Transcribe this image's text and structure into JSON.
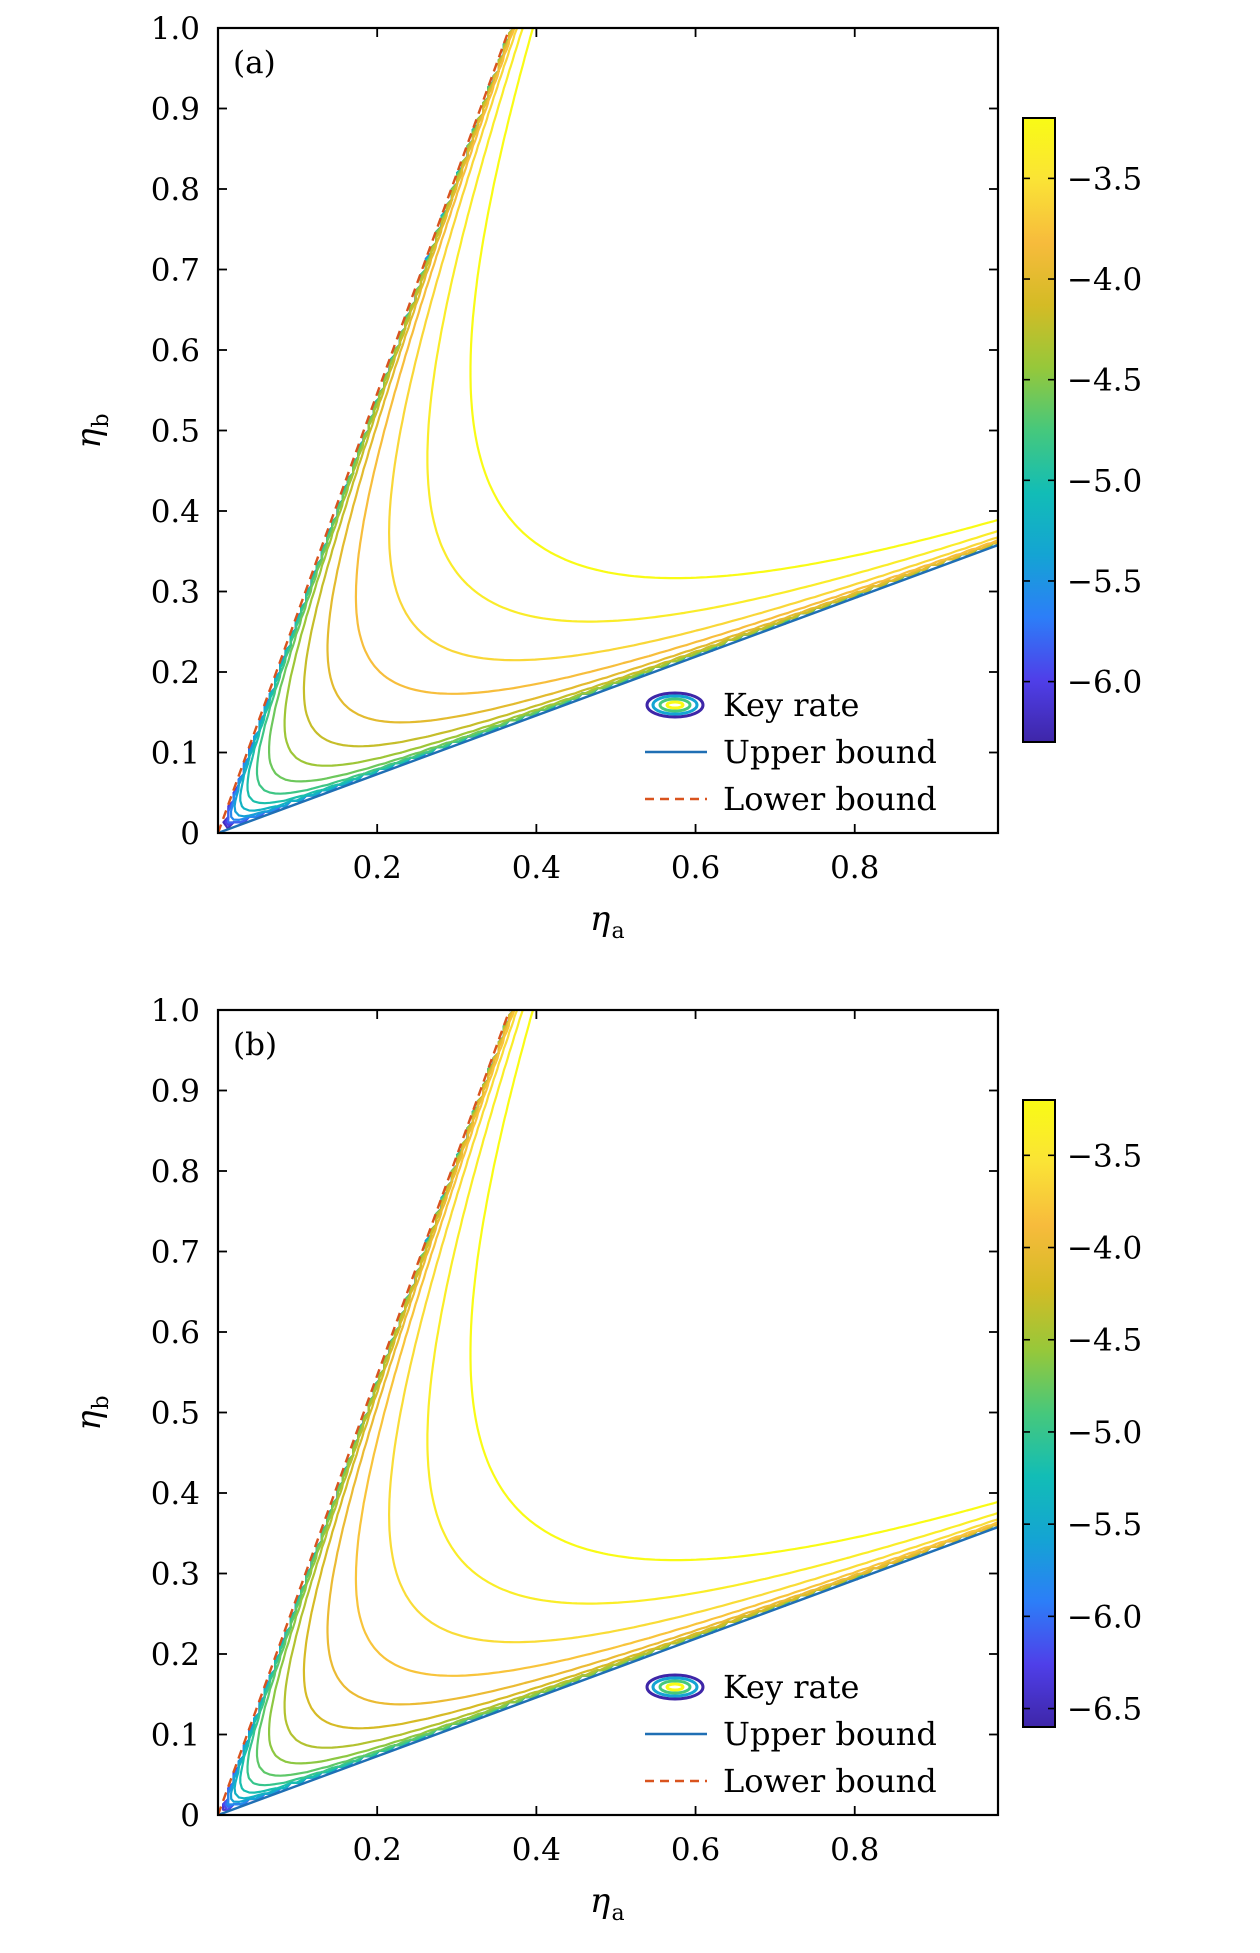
{
  "chart_data": [
    {
      "type": "contour",
      "panel_label": "(a)",
      "xlabel": "η",
      "xlabel_sub": "a",
      "ylabel": "η",
      "ylabel_sub": "b",
      "xlim": [
        0,
        0.98
      ],
      "ylim": [
        0,
        1.0
      ],
      "xticks": [
        "0.2",
        "0.4",
        "0.6",
        "0.8"
      ],
      "xtick_values": [
        0.2,
        0.4,
        0.6,
        0.8
      ],
      "yticks": [
        "0",
        "0.1",
        "0.2",
        "0.3",
        "0.4",
        "0.5",
        "0.6",
        "0.7",
        "0.8",
        "0.9",
        "1.0"
      ],
      "ytick_values": [
        0,
        0.1,
        0.2,
        0.3,
        0.4,
        0.5,
        0.6,
        0.7,
        0.8,
        0.9,
        1.0
      ],
      "contour_levels": [
        -6.2,
        -6.0,
        -5.8,
        -5.6,
        -5.4,
        -5.2,
        -5.0,
        -4.8,
        -4.6,
        -4.4,
        -4.2,
        -4.0,
        -3.8,
        -3.6,
        -3.4,
        -3.2
      ],
      "upper_bound_slope": 0.365,
      "lower_bound_slope": 2.73,
      "colorbar": {
        "ticks": [
          "−3.5",
          "−4.0",
          "−4.5",
          "−5.0",
          "−5.5",
          "−6.0"
        ],
        "tick_values": [
          -3.5,
          -4.0,
          -4.5,
          -5.0,
          -5.5,
          -6.0
        ],
        "range": [
          -6.3,
          -3.2
        ],
        "colormap": [
          "#3e26a8",
          "#4f3fe9",
          "#2c7ef8",
          "#14a4d3",
          "#12bdb6",
          "#46c87c",
          "#96c83a",
          "#d4bb25",
          "#f7bb3c",
          "#fae336",
          "#f9fb15"
        ]
      },
      "legend": {
        "position": "lower-right",
        "entries": [
          {
            "label": "Key rate",
            "kind": "contour"
          },
          {
            "label": "Upper bound",
            "kind": "solid",
            "color": "#1f6fb4"
          },
          {
            "label": "Lower bound",
            "kind": "dashed",
            "color": "#d9531e"
          }
        ]
      }
    },
    {
      "type": "contour",
      "panel_label": "(b)",
      "xlabel": "η",
      "xlabel_sub": "a",
      "ylabel": "η",
      "ylabel_sub": "b",
      "xlim": [
        0,
        0.98
      ],
      "ylim": [
        0,
        1.0
      ],
      "xticks": [
        "0.2",
        "0.4",
        "0.6",
        "0.8"
      ],
      "xtick_values": [
        0.2,
        0.4,
        0.6,
        0.8
      ],
      "yticks": [
        "0",
        "0.1",
        "0.2",
        "0.3",
        "0.4",
        "0.5",
        "0.6",
        "0.7",
        "0.8",
        "0.9",
        "1.0"
      ],
      "ytick_values": [
        0,
        0.1,
        0.2,
        0.3,
        0.4,
        0.5,
        0.6,
        0.7,
        0.8,
        0.9,
        1.0
      ],
      "contour_levels": [
        -6.6,
        -6.4,
        -6.2,
        -6.0,
        -5.8,
        -5.6,
        -5.4,
        -5.2,
        -5.0,
        -4.8,
        -4.6,
        -4.4,
        -4.2,
        -4.0,
        -3.8,
        -3.6,
        -3.4,
        -3.2
      ],
      "upper_bound_slope": 0.365,
      "lower_bound_slope": 2.73,
      "colorbar": {
        "ticks": [
          "−3.5",
          "−4.0",
          "−4.5",
          "−5.0",
          "−5.5",
          "−6.0",
          "−6.5"
        ],
        "tick_values": [
          -3.5,
          -4.0,
          -4.5,
          -5.0,
          -5.5,
          -6.0,
          -6.5
        ],
        "range": [
          -6.6,
          -3.2
        ],
        "colormap": [
          "#3e26a8",
          "#4f3fe9",
          "#2c7ef8",
          "#14a4d3",
          "#12bdb6",
          "#46c87c",
          "#96c83a",
          "#d4bb25",
          "#f7bb3c",
          "#fae336",
          "#f9fb15"
        ]
      },
      "legend": {
        "position": "lower-right",
        "entries": [
          {
            "label": "Key rate",
            "kind": "contour"
          },
          {
            "label": "Upper bound",
            "kind": "solid",
            "color": "#1f6fb4"
          },
          {
            "label": "Lower bound",
            "kind": "dashed",
            "color": "#d9531e"
          }
        ]
      }
    }
  ]
}
